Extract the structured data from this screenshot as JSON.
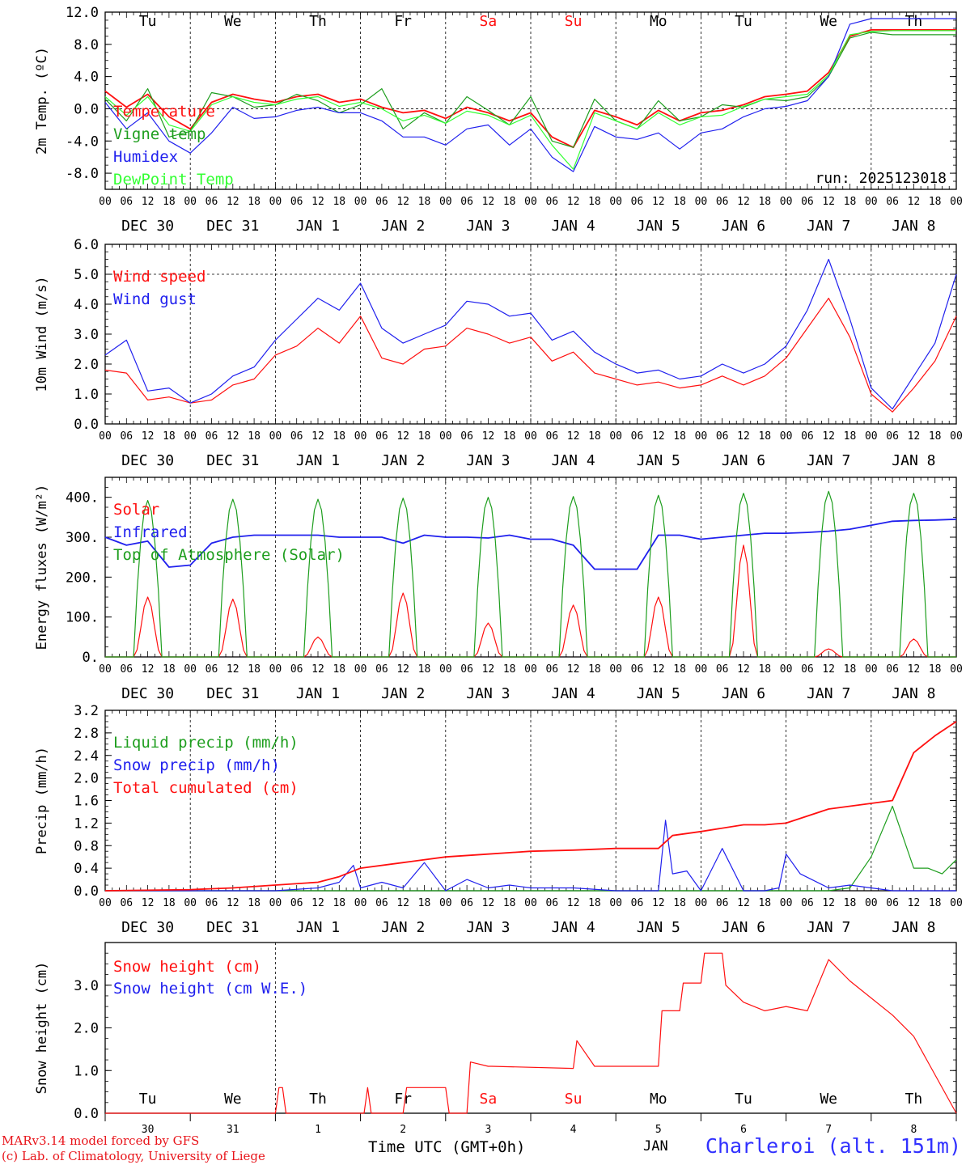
{
  "colors": {
    "red": "#ff1010",
    "dark_red": "#c80000",
    "green": "#1e9e1e",
    "light_green": "#33ff33",
    "blue": "#2020ee",
    "axis": "#000000"
  },
  "run_label": "run: 2025123018",
  "hour_labels": [
    "00",
    "06",
    "12",
    "18"
  ],
  "date_labels": [
    "DEC 30",
    "DEC 31",
    "JAN  1",
    "JAN  2",
    "JAN  3",
    "JAN  4",
    "JAN  5",
    "JAN  6",
    "JAN  7",
    "JAN  8"
  ],
  "weekdays": [
    {
      "label": "Tu",
      "weekend": false
    },
    {
      "label": "We",
      "weekend": false
    },
    {
      "label": "Th",
      "weekend": false
    },
    {
      "label": "Fr",
      "weekend": false
    },
    {
      "label": "Sa",
      "weekend": true
    },
    {
      "label": "Su",
      "weekend": true
    },
    {
      "label": "Mo",
      "weekend": false
    },
    {
      "label": "Tu",
      "weekend": false
    },
    {
      "label": "We",
      "weekend": false
    },
    {
      "label": "Th",
      "weekend": false
    }
  ],
  "day_numbers": [
    "30",
    "31",
    "1",
    "2",
    "3",
    "4",
    "5",
    "6",
    "7",
    "8"
  ],
  "footer": {
    "model": "MARv3.14 model forced by GFS",
    "credit": "(c) Lab. of Climatology, University of Liege",
    "xlabel": "Time UTC (GMT+0h)",
    "month": "JAN",
    "station": "Charleroi (alt. 151m)"
  },
  "chart_data": [
    {
      "type": "line",
      "title": "2m Temp.",
      "ylabel": "2m Temp. (ºC)",
      "ylim": [
        -10,
        12
      ],
      "yticks": [
        -8,
        -4,
        0,
        4,
        8,
        12
      ],
      "ytick_labels": [
        "-8.0",
        "-4.0",
        "0.0",
        "4.0",
        "8.0",
        "12.0"
      ],
      "hline": 0,
      "x_unit": "hours since DEC 30 00 UTC",
      "series": [
        {
          "name": "Temperature",
          "color": "#ff1010",
          "x": [
            0,
            6,
            12,
            18,
            24,
            30,
            36,
            42,
            48,
            54,
            60,
            66,
            72,
            78,
            84,
            90,
            96,
            102,
            108,
            114,
            120,
            126,
            132,
            138,
            144,
            150,
            156,
            162,
            168,
            174,
            180,
            186,
            192,
            198,
            204,
            210,
            216,
            222,
            228,
            234,
            240
          ],
          "y": [
            2.2,
            0.2,
            1.8,
            -1.0,
            -2.5,
            0.8,
            1.8,
            1.2,
            0.8,
            1.5,
            1.8,
            0.8,
            1.2,
            0.2,
            -0.5,
            -0.2,
            -1.2,
            0.2,
            -0.5,
            -1.5,
            -0.5,
            -3.5,
            -4.8,
            -0.2,
            -1.0,
            -2.0,
            -0.2,
            -1.5,
            -0.5,
            -0.2,
            0.5,
            1.5,
            1.8,
            2.2,
            4.5,
            9.0,
            9.8,
            9.8,
            9.8,
            9.8,
            9.8
          ]
        },
        {
          "name": "Vigne temp",
          "color": "#1e9e1e",
          "x": [
            0,
            6,
            12,
            18,
            24,
            30,
            36,
            42,
            48,
            54,
            60,
            66,
            72,
            78,
            84,
            90,
            96,
            102,
            108,
            114,
            120,
            126,
            132,
            138,
            144,
            150,
            156,
            162,
            168,
            174,
            180,
            186,
            192,
            198,
            204,
            210,
            216,
            222,
            228,
            234,
            240
          ],
          "y": [
            1.2,
            -1.5,
            2.5,
            -3.5,
            -2.8,
            2.0,
            1.5,
            0.2,
            0.5,
            1.8,
            1.0,
            -0.5,
            0.5,
            2.5,
            -2.5,
            -0.5,
            -1.8,
            1.5,
            -0.2,
            -2.0,
            1.5,
            -4.0,
            -4.8,
            1.2,
            -1.5,
            -2.5,
            1.0,
            -1.5,
            -1.0,
            0.5,
            0.2,
            1.2,
            1.0,
            1.5,
            4.0,
            8.8,
            9.5,
            9.2,
            9.2,
            9.2,
            9.2
          ]
        },
        {
          "name": "Humidex",
          "color": "#2020ee",
          "x": [
            0,
            6,
            12,
            18,
            24,
            30,
            36,
            42,
            48,
            54,
            60,
            66,
            72,
            78,
            84,
            90,
            96,
            102,
            108,
            114,
            120,
            126,
            132,
            138,
            144,
            150,
            156,
            162,
            168,
            174,
            180,
            186,
            192,
            198,
            204,
            210,
            216,
            222,
            228,
            234,
            240
          ],
          "y": [
            0.8,
            -2.5,
            -0.5,
            -4.0,
            -5.5,
            -3.0,
            0.2,
            -1.2,
            -1.0,
            -0.2,
            0.2,
            -0.5,
            -0.5,
            -1.5,
            -3.5,
            -3.5,
            -4.5,
            -2.5,
            -2.0,
            -4.5,
            -2.5,
            -6.0,
            -7.8,
            -2.2,
            -3.5,
            -3.8,
            -3.0,
            -5.0,
            -3.0,
            -2.5,
            -1.0,
            0.0,
            0.3,
            1.0,
            4.0,
            10.5,
            11.2,
            11.2,
            11.2,
            11.2,
            11.2
          ]
        },
        {
          "name": "DewPoint Temp",
          "color": "#33ff33",
          "x": [
            0,
            6,
            12,
            18,
            24,
            30,
            36,
            42,
            48,
            54,
            60,
            66,
            72,
            78,
            84,
            90,
            96,
            102,
            108,
            114,
            120,
            126,
            132,
            138,
            144,
            150,
            156,
            162,
            168,
            174,
            180,
            186,
            192,
            198,
            204,
            210,
            216,
            222,
            228,
            234,
            240
          ],
          "y": [
            1.5,
            -0.8,
            1.5,
            -2.0,
            -2.8,
            0.5,
            1.5,
            0.8,
            0.5,
            1.2,
            1.5,
            0.3,
            0.8,
            0.0,
            -1.5,
            -0.8,
            -1.8,
            -0.3,
            -0.8,
            -2.0,
            -0.8,
            -4.5,
            -7.5,
            -0.5,
            -1.5,
            -2.5,
            -0.5,
            -2.0,
            -1.0,
            -0.8,
            0.3,
            1.2,
            1.5,
            1.8,
            4.2,
            9.2,
            9.6,
            9.7,
            9.7,
            9.7,
            9.7
          ]
        }
      ]
    },
    {
      "type": "line",
      "title": "10m Wind",
      "ylabel": "10m Wind (m/s)",
      "ylim": [
        0,
        6
      ],
      "yticks": [
        0,
        1,
        2,
        3,
        4,
        5,
        6
      ],
      "ytick_labels": [
        "0.0",
        "1.0",
        "2.0",
        "3.0",
        "4.0",
        "5.0",
        "6.0"
      ],
      "hline": 5,
      "x_unit": "hours since DEC 30 00 UTC",
      "series": [
        {
          "name": "Wind speed",
          "color": "#ff1010",
          "x": [
            0,
            6,
            12,
            18,
            24,
            30,
            36,
            42,
            48,
            54,
            60,
            66,
            72,
            78,
            84,
            90,
            96,
            102,
            108,
            114,
            120,
            126,
            132,
            138,
            144,
            150,
            156,
            162,
            168,
            174,
            180,
            186,
            192,
            198,
            204,
            210,
            216,
            222,
            228,
            234,
            240
          ],
          "y": [
            1.8,
            1.7,
            0.8,
            0.9,
            0.7,
            0.8,
            1.3,
            1.5,
            2.3,
            2.6,
            3.2,
            2.7,
            3.6,
            2.2,
            2.0,
            2.5,
            2.6,
            3.2,
            3.0,
            2.7,
            2.9,
            2.1,
            2.4,
            1.7,
            1.5,
            1.3,
            1.4,
            1.2,
            1.3,
            1.6,
            1.3,
            1.6,
            2.2,
            3.2,
            4.2,
            2.9,
            1.0,
            0.4,
            1.2,
            2.1,
            3.6
          ]
        },
        {
          "name": "Wind gust",
          "color": "#2020ee",
          "x": [
            0,
            6,
            12,
            18,
            24,
            30,
            36,
            42,
            48,
            54,
            60,
            66,
            72,
            78,
            84,
            90,
            96,
            102,
            108,
            114,
            120,
            126,
            132,
            138,
            144,
            150,
            156,
            162,
            168,
            174,
            180,
            186,
            192,
            198,
            204,
            210,
            216,
            222,
            228,
            234,
            240
          ],
          "y": [
            2.3,
            2.8,
            1.1,
            1.2,
            0.7,
            1.0,
            1.6,
            1.9,
            2.8,
            3.5,
            4.2,
            3.8,
            4.7,
            3.2,
            2.7,
            3.0,
            3.3,
            4.1,
            4.0,
            3.6,
            3.7,
            2.8,
            3.1,
            2.4,
            2.0,
            1.7,
            1.8,
            1.5,
            1.6,
            2.0,
            1.7,
            2.0,
            2.6,
            3.8,
            5.5,
            3.5,
            1.2,
            0.5,
            1.6,
            2.7,
            5.0
          ]
        }
      ]
    },
    {
      "type": "line",
      "title": "Energy fluxes",
      "ylabel": "Energy fluxes (W/m²)",
      "ylim": [
        0,
        450
      ],
      "yticks": [
        0,
        100,
        200,
        300,
        400
      ],
      "ytick_labels": [
        "0.",
        "100.",
        "200.",
        "300.",
        "400."
      ],
      "x_unit": "hours since DEC 30 00 UTC",
      "series": [
        {
          "name": "Solar",
          "color": "#ff1010",
          "peaks": [
            150,
            145,
            50,
            160,
            85,
            130,
            150,
            280,
            20,
            45
          ]
        },
        {
          "name": "Infrared",
          "color": "#2020ee",
          "x": [
            0,
            6,
            12,
            18,
            24,
            30,
            36,
            42,
            48,
            54,
            60,
            66,
            72,
            78,
            84,
            90,
            96,
            102,
            108,
            114,
            120,
            126,
            132,
            138,
            144,
            150,
            156,
            162,
            168,
            174,
            180,
            186,
            192,
            198,
            204,
            210,
            216,
            222,
            228,
            234,
            240
          ],
          "y": [
            300,
            280,
            290,
            225,
            230,
            285,
            300,
            305,
            305,
            305,
            305,
            300,
            300,
            300,
            285,
            305,
            300,
            300,
            298,
            305,
            295,
            295,
            280,
            220,
            220,
            220,
            305,
            305,
            295,
            300,
            305,
            310,
            310,
            312,
            315,
            320,
            330,
            340,
            342,
            343,
            345
          ]
        },
        {
          "name": "Top of Atmosphere (Solar)",
          "color": "#1e9e1e",
          "peaks": [
            392,
            395,
            395,
            398,
            400,
            402,
            405,
            410,
            415,
            410
          ]
        }
      ]
    },
    {
      "type": "line",
      "title": "Precip",
      "ylabel": "Precip (mm/h)",
      "ylim": [
        0,
        3.2
      ],
      "yticks": [
        0,
        0.4,
        0.8,
        1.2,
        1.6,
        2.0,
        2.4,
        2.8,
        3.2
      ],
      "ytick_labels": [
        "0.0",
        "0.4",
        "0.8",
        "1.2",
        "1.6",
        "2.0",
        "2.4",
        "2.8",
        "3.2"
      ],
      "x_unit": "hours since DEC 30 00 UTC",
      "series": [
        {
          "name": "Liquid precip (mm/h)",
          "color": "#1e9e1e",
          "x": [
            0,
            24,
            48,
            96,
            120,
            144,
            168,
            192,
            204,
            210,
            216,
            222,
            228,
            232,
            236,
            240
          ],
          "y": [
            0,
            0,
            0,
            0,
            0,
            0,
            0,
            0,
            0,
            0.05,
            0.6,
            1.5,
            0.4,
            0.4,
            0.3,
            0.55
          ]
        },
        {
          "name": "Snow precip (mm/h)",
          "color": "#2020ee",
          "x": [
            0,
            24,
            48,
            60,
            66,
            70,
            72,
            78,
            84,
            90,
            96,
            102,
            108,
            114,
            120,
            132,
            144,
            150,
            156,
            158,
            160,
            164,
            168,
            174,
            180,
            186,
            190,
            192,
            196,
            204,
            210,
            216,
            222,
            228,
            240
          ],
          "y": [
            0,
            0,
            0,
            0.05,
            0.15,
            0.45,
            0.05,
            0.15,
            0.05,
            0.5,
            0,
            0.2,
            0.05,
            0.1,
            0.05,
            0.05,
            0,
            0,
            0,
            1.25,
            0.3,
            0.35,
            0,
            0.75,
            0,
            0,
            0.05,
            0.65,
            0.3,
            0.05,
            0.1,
            0.05,
            0,
            0,
            0
          ]
        },
        {
          "name": "Total cumulated (cm)",
          "color": "#ff1010",
          "x": [
            0,
            24,
            36,
            48,
            60,
            66,
            72,
            84,
            96,
            108,
            120,
            132,
            144,
            156,
            160,
            168,
            180,
            186,
            192,
            204,
            216,
            222,
            228,
            234,
            240
          ],
          "y": [
            0,
            0.02,
            0.05,
            0.1,
            0.15,
            0.25,
            0.4,
            0.5,
            0.6,
            0.65,
            0.7,
            0.72,
            0.75,
            0.75,
            0.98,
            1.05,
            1.17,
            1.17,
            1.2,
            1.45,
            1.55,
            1.6,
            2.45,
            2.75,
            3.0
          ]
        }
      ]
    },
    {
      "type": "line",
      "title": "Snow height",
      "ylabel": "Snow height (cm)",
      "ylim": [
        0,
        4
      ],
      "yticks": [
        0,
        1,
        2,
        3
      ],
      "ytick_labels": [
        "0.0",
        "1.0",
        "2.0",
        "3.0"
      ],
      "x_unit": "hours since DEC 30 00 UTC",
      "series": [
        {
          "name": "Snow height (cm)",
          "color": "#ff1010",
          "x": [
            0,
            48,
            49,
            50,
            51,
            72,
            73,
            74,
            75,
            84,
            85,
            96,
            97,
            102,
            103,
            108,
            109,
            132,
            133,
            138,
            144,
            150,
            156,
            157,
            162,
            163,
            168,
            169,
            174,
            175,
            180,
            186,
            192,
            198,
            204,
            210,
            222,
            228,
            240
          ],
          "y": [
            0,
            0,
            0.6,
            0.6,
            0,
            0,
            0,
            0.6,
            0,
            0,
            0.6,
            0.6,
            0,
            0,
            1.2,
            1.1,
            1.1,
            1.05,
            1.7,
            1.1,
            1.1,
            1.1,
            1.1,
            2.4,
            2.4,
            3.05,
            3.05,
            3.75,
            3.75,
            3.0,
            2.6,
            2.4,
            2.5,
            2.4,
            3.6,
            3.1,
            2.3,
            1.8,
            0
          ]
        },
        {
          "name": "Snow height (cm W.E.)",
          "color": "#2020ee",
          "x": [],
          "y": []
        }
      ]
    }
  ]
}
